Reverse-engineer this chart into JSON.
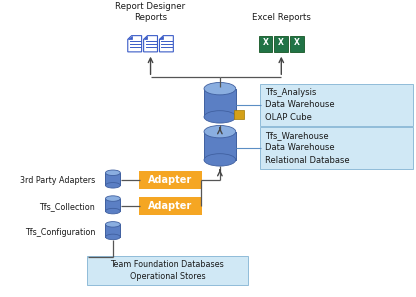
{
  "bg_color": "#ffffff",
  "light_blue_box": "#d0e8f5",
  "adapter_color": "#f5a623",
  "db_color": "#5b7fc4",
  "db_top_color": "#8aaee0",
  "doc_color": "#3a5bc7",
  "excel_green": "#217346",
  "line_color": "#555555",
  "arrow_color": "#444444",
  "text_color": "#1a1a1a",
  "title_rd": "Report Designer\nReports",
  "title_excel": "Excel Reports",
  "label_analysis": "Tfs_Analysis\nData Warehouse\nOLAP Cube",
  "label_warehouse": "Tfs_Warehouse\nData Warehouse\nRelational Database",
  "label_foundation": "Team Foundation Databases\nOperational Stores",
  "label_3rd": "3rd Party Adapters",
  "label_coll": "Tfs_Collection",
  "label_conf": "Tfs_Configuration",
  "adapter_text": "Adapter"
}
